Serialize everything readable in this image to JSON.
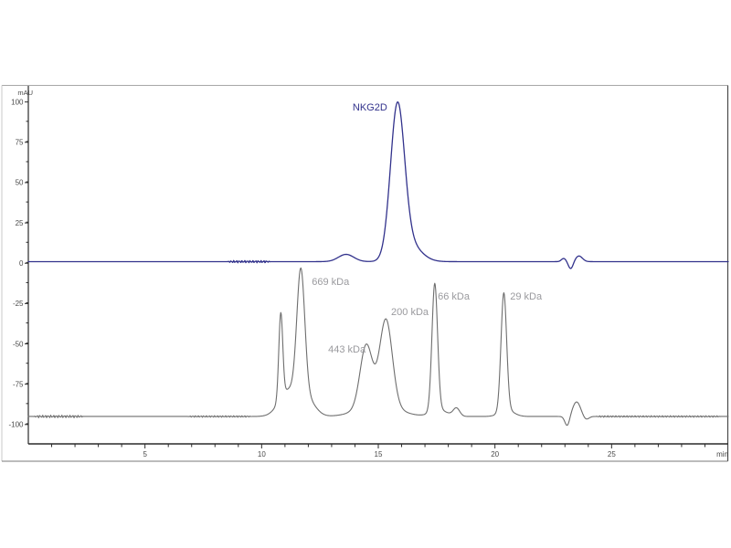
{
  "chart_data": {
    "type": "line",
    "title": "",
    "ylabel": "mAU",
    "xlabel": "",
    "x_unit_label": "min",
    "xlim": [
      0,
      30
    ],
    "ylim": [
      -112,
      110
    ],
    "grid": false,
    "legend": false,
    "x_major_ticks": [
      5,
      10,
      15,
      20,
      25
    ],
    "x_minor_step": 1,
    "y_major_ticks": [
      100,
      75,
      50,
      25,
      0,
      -25,
      -50,
      -75,
      -100
    ],
    "y_minor_step": 12.5,
    "colors": {
      "sample_trace": "#32328c",
      "standard_trace": "#6e6e6e",
      "standard_label_text": "#9a9a9e",
      "sample_label_text": "#32328c",
      "axis_line": "#2a2a2a",
      "tick_text": "#4a4a4a",
      "frame_top": "#a8a8a8",
      "frame_right": "#4a4a4a",
      "frame_bottom": "#7a7a7a",
      "frame_left": "#c8c8c8",
      "background": "#ffffff"
    },
    "series": [
      {
        "name": "NKG2D sample trace",
        "baseline_mAU": 1,
        "peaks": [
          {
            "center_min": 13.62,
            "sigma_min": 0.33,
            "height_mAU": 4.5
          },
          {
            "center_min": 15.82,
            "sigma_min": 0.3,
            "height_mAU": 92
          },
          {
            "center_min": 16.3,
            "sigma_min": 0.5,
            "height_mAU": 11
          },
          {
            "center_min": 22.95,
            "sigma_min": 0.1,
            "height_mAU": 2
          },
          {
            "center_min": 23.25,
            "sigma_min": 0.1,
            "height_mAU": -4.5
          },
          {
            "center_min": 23.6,
            "sigma_min": 0.15,
            "height_mAU": 3.5
          }
        ],
        "noise_windows": [
          {
            "from_min": 8.5,
            "to_min": 10.4,
            "amp_mAU": 0.7
          }
        ]
      },
      {
        "name": "MW standards trace",
        "baseline_mAU": -95,
        "peaks": [
          {
            "center_min": 10.82,
            "sigma_min": 0.085,
            "height_mAU": 53
          },
          {
            "center_min": 11.15,
            "sigma_min": 0.4,
            "height_mAU": 16
          },
          {
            "center_min": 11.68,
            "sigma_min": 0.17,
            "height_mAU": 78
          },
          {
            "center_min": 11.95,
            "sigma_min": 0.35,
            "height_mAU": 10
          },
          {
            "center_min": 14.48,
            "sigma_min": 0.26,
            "height_mAU": 38
          },
          {
            "center_min": 15.0,
            "sigma_min": 0.8,
            "height_mAU": 8
          },
          {
            "center_min": 15.33,
            "sigma_min": 0.27,
            "height_mAU": 53
          },
          {
            "center_min": 17.42,
            "sigma_min": 0.12,
            "height_mAU": 79
          },
          {
            "center_min": 17.6,
            "sigma_min": 0.35,
            "height_mAU": 4
          },
          {
            "center_min": 18.35,
            "sigma_min": 0.14,
            "height_mAU": 5
          },
          {
            "center_min": 20.38,
            "sigma_min": 0.12,
            "height_mAU": 73
          },
          {
            "center_min": 20.5,
            "sigma_min": 0.3,
            "height_mAU": 4
          },
          {
            "center_min": 23.1,
            "sigma_min": 0.1,
            "height_mAU": -6
          },
          {
            "center_min": 23.5,
            "sigma_min": 0.17,
            "height_mAU": 9
          },
          {
            "center_min": 23.9,
            "sigma_min": 0.12,
            "height_mAU": -2
          }
        ],
        "noise_windows": [
          {
            "from_min": 0.2,
            "to_min": 2.4,
            "amp_mAU": 0.8
          },
          {
            "from_min": 6.8,
            "to_min": 9.6,
            "amp_mAU": 0.5
          },
          {
            "from_min": 24.3,
            "to_min": 29.7,
            "amp_mAU": 0.5
          }
        ]
      }
    ],
    "annotations": [
      {
        "text": "NKG2D",
        "t_min": 13.9,
        "mAU": 96,
        "series": "sample"
      },
      {
        "text": "669 kDa",
        "t_min": 12.15,
        "mAU": -12,
        "series": "standard"
      },
      {
        "text": "443 kDa",
        "t_min": 12.85,
        "mAU": -54,
        "series": "standard"
      },
      {
        "text": "200 kDa",
        "t_min": 15.55,
        "mAU": -31,
        "series": "standard"
      },
      {
        "text": "66 kDa",
        "t_min": 17.55,
        "mAU": -21,
        "series": "standard"
      },
      {
        "text": "29 kDa",
        "t_min": 20.65,
        "mAU": -21,
        "series": "standard"
      }
    ]
  }
}
